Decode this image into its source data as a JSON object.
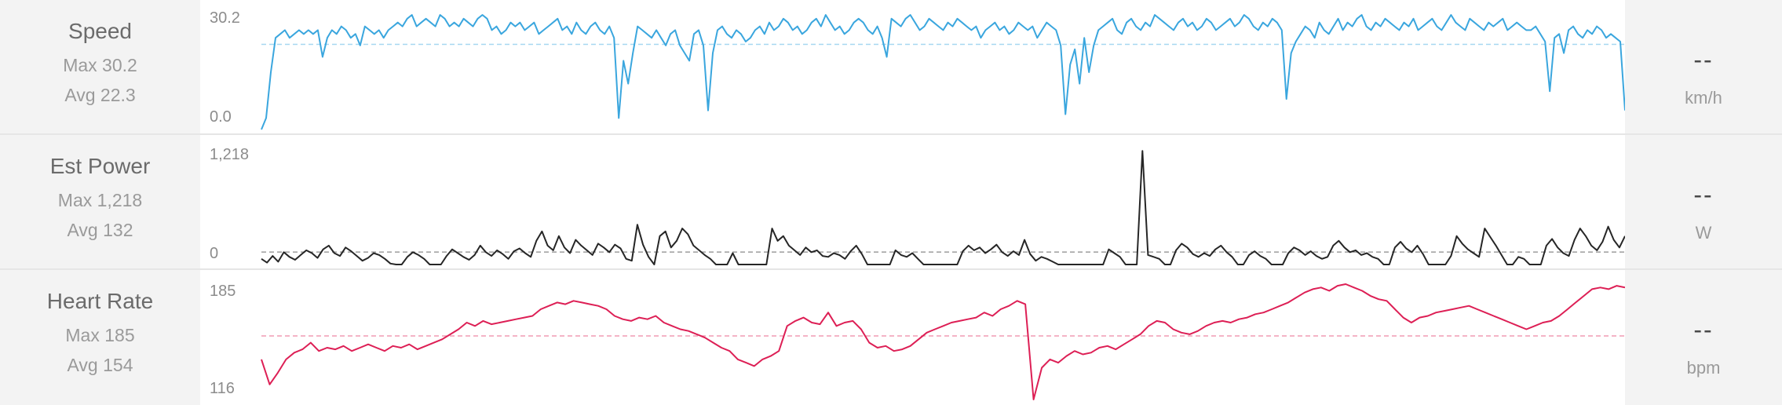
{
  "rows": [
    {
      "label": "Speed",
      "max_text": "Max 30.2",
      "avg_text": "Avg 22.3",
      "current": "--",
      "unit": "km/h",
      "ytop_label": "30.2",
      "ybottom_label": "0.0",
      "color": "#3aa6de"
    },
    {
      "label": "Est Power",
      "max_text": "Max 1,218",
      "avg_text": "Avg 132",
      "current": "--",
      "unit": "W",
      "ytop_label": "1,218",
      "ybottom_label": "0",
      "color": "#262626"
    },
    {
      "label": "Heart Rate",
      "max_text": "Max 185",
      "avg_text": "Avg 154",
      "current": "--",
      "unit": "bpm",
      "ytop_label": "185",
      "ybottom_label": "116",
      "color": "#dd1f55"
    }
  ],
  "chart_data": [
    {
      "type": "line",
      "series": [
        {
          "values": [
            0,
            3,
            15,
            24,
            25,
            26,
            24,
            25,
            26,
            25,
            26,
            25,
            26,
            19,
            24,
            26,
            25,
            27,
            26,
            24,
            25,
            22,
            27,
            26,
            25,
            26,
            24,
            26,
            27,
            28,
            27,
            29,
            30,
            27,
            28,
            29,
            28,
            27,
            30,
            29,
            27,
            28,
            27,
            29,
            28,
            27,
            29,
            30,
            29,
            26,
            27,
            25,
            26,
            28,
            27,
            28,
            26,
            27,
            28,
            25,
            26,
            27,
            28,
            29,
            26,
            27,
            25,
            28,
            26,
            25,
            27,
            28,
            26,
            25,
            27,
            24,
            3,
            18,
            12,
            20,
            27,
            26,
            25,
            24,
            26,
            24,
            22,
            25,
            26,
            22,
            20,
            18,
            25,
            26,
            22,
            5,
            20,
            26,
            27,
            25,
            24,
            26,
            25,
            23,
            24,
            26,
            27,
            25,
            28,
            26,
            27,
            29,
            28,
            26,
            27,
            25,
            26,
            28,
            29,
            27,
            30,
            28,
            26,
            27,
            25,
            26,
            28,
            29,
            28,
            26,
            25,
            27,
            24,
            19,
            29,
            28,
            27,
            29,
            30,
            28,
            26,
            27,
            29,
            28,
            27,
            26,
            28,
            27,
            29,
            28,
            27,
            26,
            27,
            24,
            26,
            27,
            28,
            26,
            27,
            25,
            26,
            28,
            27,
            26,
            27,
            24,
            26,
            28,
            27,
            26,
            22,
            4,
            17,
            21,
            12,
            24,
            15,
            22,
            26,
            27,
            28,
            29,
            26,
            25,
            28,
            29,
            27,
            26,
            28,
            27,
            30,
            29,
            28,
            27,
            26,
            28,
            29,
            27,
            28,
            26,
            27,
            29,
            28,
            26,
            27,
            28,
            29,
            27,
            28,
            30,
            29,
            27,
            26,
            28,
            27,
            29,
            28,
            26,
            8,
            20,
            23,
            25,
            27,
            26,
            24,
            28,
            26,
            25,
            27,
            29,
            26,
            28,
            27,
            29,
            30,
            27,
            26,
            28,
            27,
            29,
            28,
            27,
            26,
            28,
            27,
            29,
            26,
            27,
            28,
            29,
            27,
            26,
            28,
            30,
            28,
            27,
            26,
            29,
            28,
            27,
            26,
            28,
            27,
            28,
            29,
            26,
            27,
            28,
            27,
            26,
            26,
            27,
            25,
            23,
            10,
            24,
            25,
            20,
            26,
            27,
            25,
            24,
            26,
            25,
            27,
            26,
            24,
            25,
            24,
            23,
            5
          ]
        }
      ],
      "ylim": [
        0,
        30.2
      ],
      "avg": 22.3
    },
    {
      "type": "line",
      "series": [
        {
          "values": [
            60,
            20,
            90,
            30,
            130,
            80,
            50,
            100,
            150,
            120,
            70,
            160,
            200,
            120,
            90,
            180,
            140,
            90,
            40,
            70,
            120,
            100,
            60,
            10,
            0,
            0,
            80,
            130,
            100,
            60,
            0,
            0,
            0,
            90,
            160,
            120,
            80,
            50,
            100,
            200,
            130,
            90,
            150,
            110,
            60,
            140,
            170,
            120,
            80,
            250,
            350,
            200,
            150,
            300,
            180,
            120,
            260,
            200,
            150,
            100,
            220,
            180,
            130,
            210,
            170,
            60,
            40,
            420,
            210,
            80,
            0,
            300,
            350,
            180,
            250,
            380,
            320,
            200,
            150,
            100,
            60,
            0,
            0,
            0,
            120,
            0,
            0,
            0,
            0,
            0,
            0,
            380,
            250,
            300,
            200,
            150,
            100,
            180,
            130,
            150,
            90,
            80,
            120,
            100,
            60,
            140,
            200,
            110,
            0,
            0,
            0,
            0,
            0,
            150,
            100,
            80,
            120,
            60,
            0,
            0,
            0,
            0,
            0,
            0,
            0,
            140,
            200,
            150,
            180,
            120,
            160,
            210,
            130,
            90,
            140,
            100,
            260,
            110,
            40,
            80,
            60,
            30,
            0,
            0,
            0,
            0,
            0,
            0,
            0,
            0,
            0,
            160,
            120,
            80,
            0,
            0,
            0,
            1200,
            100,
            80,
            60,
            0,
            0,
            150,
            220,
            180,
            110,
            80,
            120,
            90,
            160,
            200,
            130,
            80,
            0,
            0,
            100,
            140,
            90,
            60,
            0,
            0,
            0,
            120,
            180,
            150,
            100,
            140,
            90,
            60,
            80,
            200,
            250,
            180,
            130,
            150,
            100,
            120,
            80,
            60,
            0,
            0,
            180,
            240,
            170,
            130,
            200,
            110,
            0,
            0,
            0,
            0,
            90,
            300,
            220,
            160,
            120,
            80,
            380,
            290,
            200,
            100,
            0,
            0,
            80,
            60,
            0,
            0,
            0,
            200,
            270,
            180,
            120,
            90,
            260,
            380,
            300,
            200,
            150,
            240,
            400,
            260,
            180,
            300
          ]
        }
      ],
      "ylim": [
        0,
        1218
      ],
      "avg": 132
    },
    {
      "type": "line",
      "series": [
        {
          "values": [
            140,
            125,
            132,
            140,
            144,
            146,
            150,
            145,
            147,
            146,
            148,
            145,
            147,
            149,
            147,
            145,
            148,
            147,
            149,
            146,
            148,
            150,
            152,
            155,
            158,
            162,
            160,
            163,
            161,
            162,
            163,
            164,
            165,
            166,
            170,
            172,
            174,
            173,
            175,
            174,
            173,
            172,
            170,
            166,
            164,
            163,
            165,
            164,
            166,
            162,
            160,
            158,
            157,
            155,
            153,
            150,
            147,
            145,
            140,
            138,
            136,
            140,
            142,
            145,
            160,
            163,
            165,
            162,
            161,
            168,
            160,
            162,
            163,
            158,
            150,
            147,
            148,
            145,
            146,
            148,
            152,
            156,
            158,
            160,
            162,
            163,
            164,
            165,
            168,
            166,
            170,
            172,
            175,
            173,
            116,
            135,
            140,
            138,
            142,
            145,
            143,
            144,
            147,
            148,
            146,
            149,
            152,
            155,
            160,
            163,
            162,
            158,
            156,
            155,
            157,
            160,
            162,
            163,
            162,
            164,
            165,
            167,
            168,
            170,
            172,
            174,
            177,
            180,
            182,
            183,
            181,
            184,
            185,
            183,
            181,
            178,
            176,
            175,
            170,
            165,
            162,
            165,
            166,
            168,
            169,
            170,
            171,
            172,
            170,
            168,
            166,
            164,
            162,
            160,
            158,
            160,
            162,
            163,
            166,
            170,
            174,
            178,
            182,
            183,
            182,
            184,
            183
          ]
        }
      ],
      "ylim": [
        116,
        185
      ],
      "avg": 154
    }
  ]
}
